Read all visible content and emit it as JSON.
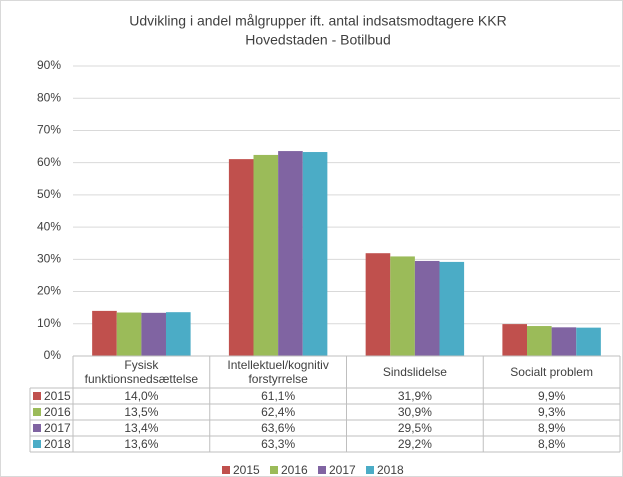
{
  "chart_data": {
    "type": "bar",
    "title": "Udvikling i andel målgrupper ift. antal indsatsmodtagere KKR",
    "subtitle": "Hovedstaden - Botilbud",
    "categories": [
      "Fysisk funktionsnedsættelse",
      "Intellektuel/kognitiv forstyrrelse",
      "Sindslidelse",
      "Socialt problem"
    ],
    "series": [
      {
        "name": "2015",
        "color": "#c0504d",
        "values": [
          14.0,
          61.1,
          31.9,
          9.9
        ],
        "value_labels": [
          "14,0%",
          "61,1%",
          "31,9%",
          "9,9%"
        ]
      },
      {
        "name": "2016",
        "color": "#9bbb59",
        "values": [
          13.5,
          62.4,
          30.9,
          9.3
        ],
        "value_labels": [
          "13,5%",
          "62,4%",
          "30,9%",
          "9,3%"
        ]
      },
      {
        "name": "2017",
        "color": "#8064a2",
        "values": [
          13.4,
          63.6,
          29.5,
          8.9
        ],
        "value_labels": [
          "13,4%",
          "63,6%",
          "29,5%",
          "8,9%"
        ]
      },
      {
        "name": "2018",
        "color": "#4bacc6",
        "values": [
          13.6,
          63.3,
          29.2,
          8.8
        ],
        "value_labels": [
          "13,6%",
          "63,3%",
          "29,2%",
          "8,8%"
        ]
      }
    ],
    "ylim": [
      0,
      90
    ],
    "yticks": [
      {
        "value": 0,
        "label": "0%"
      },
      {
        "value": 10,
        "label": "10%"
      },
      {
        "value": 20,
        "label": "20%"
      },
      {
        "value": 30,
        "label": "30%"
      },
      {
        "value": 40,
        "label": "40%"
      },
      {
        "value": 50,
        "label": "50%"
      },
      {
        "value": 60,
        "label": "60%"
      },
      {
        "value": 70,
        "label": "70%"
      },
      {
        "value": 80,
        "label": "80%"
      },
      {
        "value": 90,
        "label": "90%"
      }
    ],
    "grid": true,
    "legend": "bottom"
  }
}
